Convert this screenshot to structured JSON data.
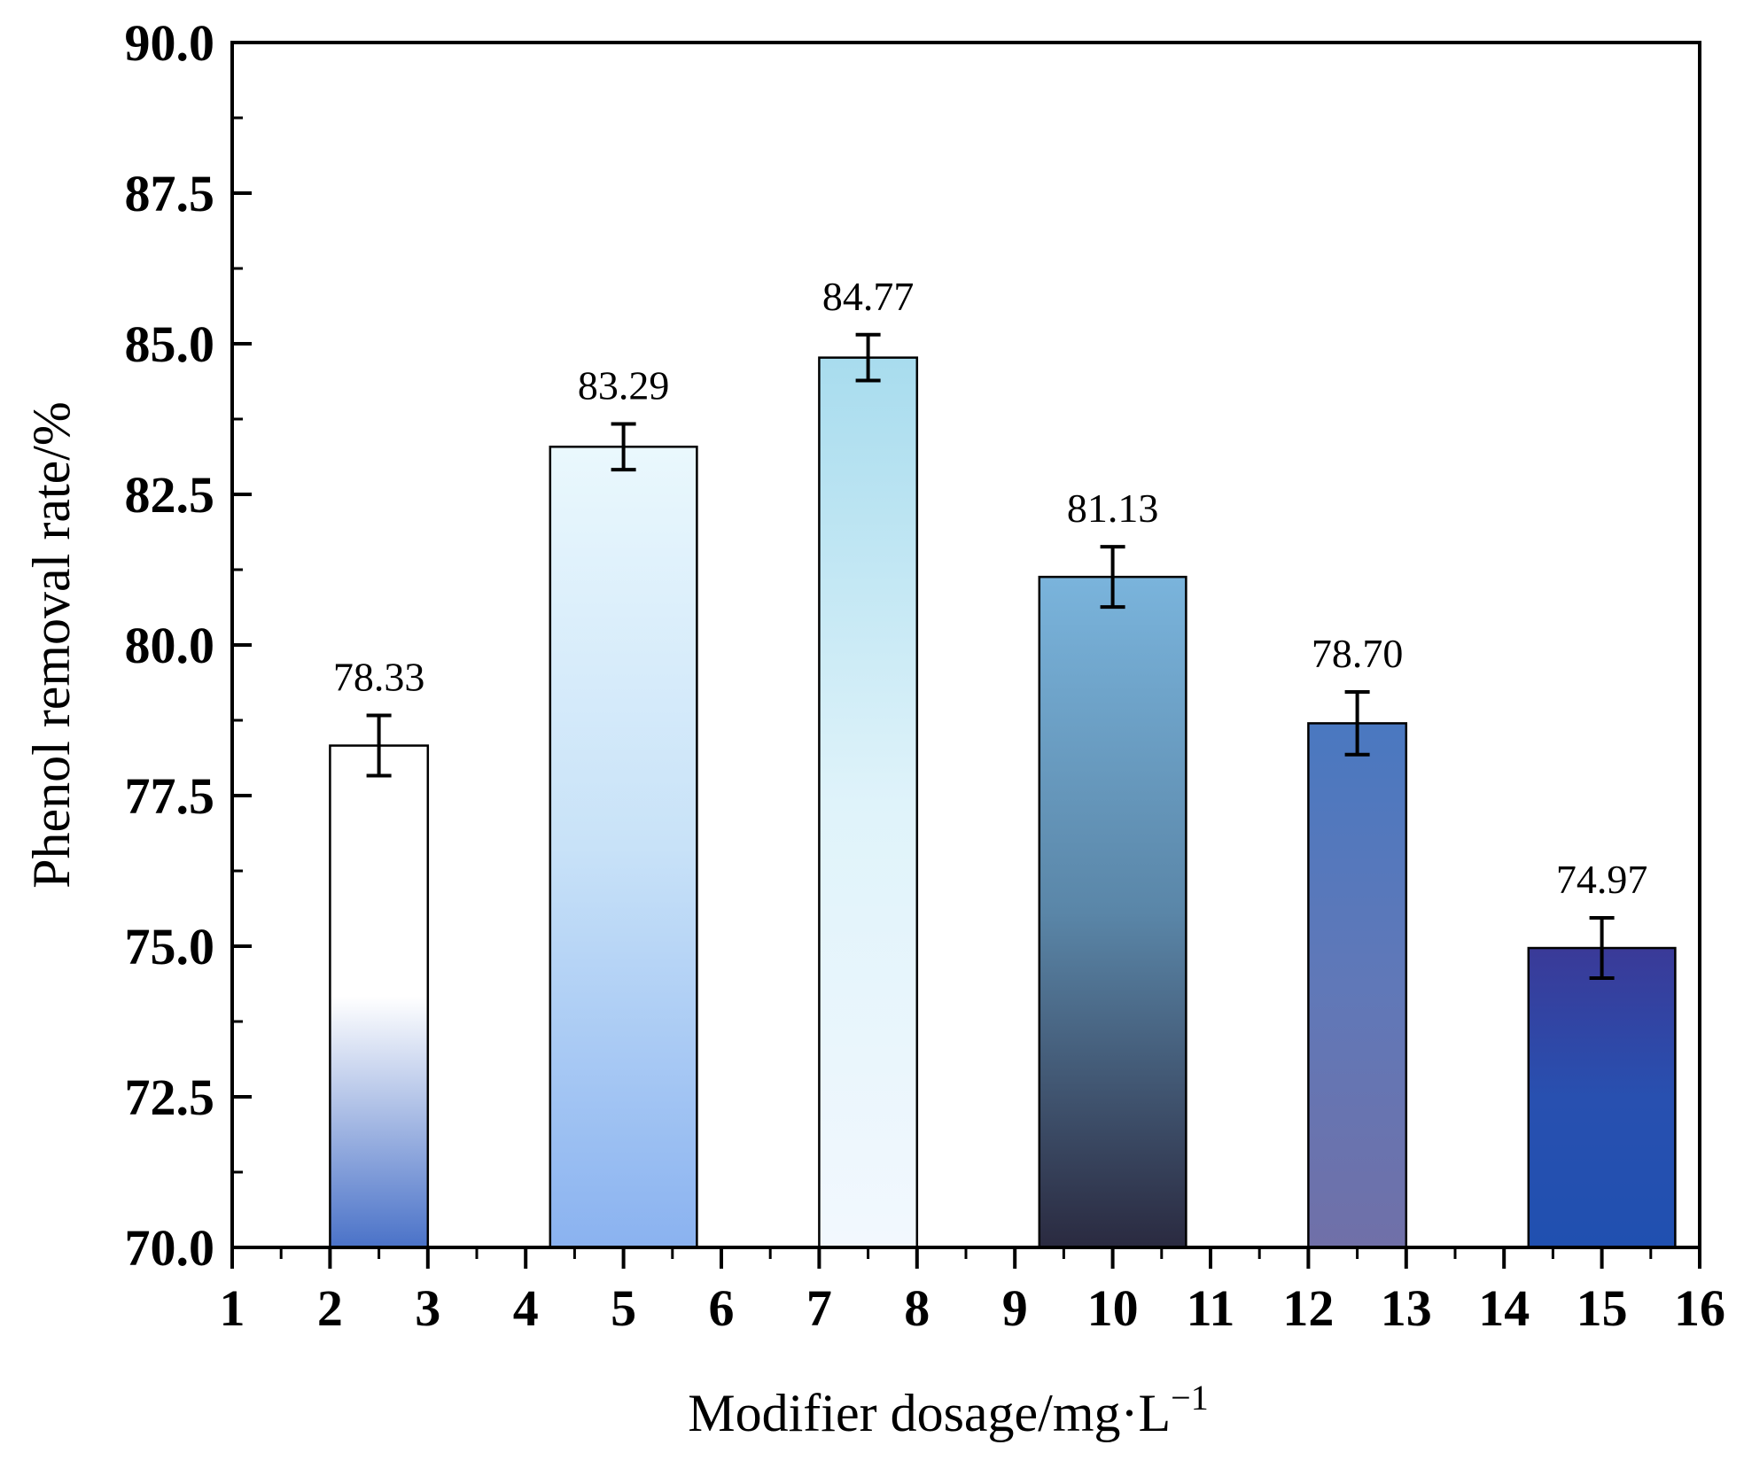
{
  "chart_data": {
    "type": "bar",
    "title": "",
    "xlabel": "Modifier dosage/mg·L",
    "xlabel_superscript": "−1",
    "ylabel": "Phenol removal rate/%",
    "ylim": [
      70.0,
      90.0
    ],
    "xlim": [
      1,
      16
    ],
    "yticks": [
      "70.0",
      "72.5",
      "75.0",
      "77.5",
      "80.0",
      "82.5",
      "85.0",
      "87.5",
      "90.0"
    ],
    "xticks": [
      "1",
      "2",
      "3",
      "4",
      "5",
      "6",
      "7",
      "8",
      "9",
      "10",
      "11",
      "12",
      "13",
      "14",
      "15",
      "16"
    ],
    "bars": [
      {
        "x": 2.5,
        "x_from": 2,
        "x_to": 3,
        "value": 78.33,
        "label": "78.33",
        "error": 0.5,
        "gradient": [
          "#ffffff",
          "#ffffff",
          "#4a72c8"
        ]
      },
      {
        "x": 5,
        "x_from": 4.25,
        "x_to": 5.75,
        "value": 83.29,
        "label": "83.29",
        "error": 0.38,
        "gradient": [
          "#eaf8fd",
          "#c8e2f8",
          "#8ab2f0"
        ]
      },
      {
        "x": 7.5,
        "x_from": 7,
        "x_to": 8,
        "value": 84.77,
        "label": "84.77",
        "error": 0.38,
        "gradient": [
          "#a8dcee",
          "#dff3fa",
          "#f2f8fe"
        ]
      },
      {
        "x": 10,
        "x_from": 9.25,
        "x_to": 10.75,
        "value": 81.13,
        "label": "81.13",
        "error": 0.5,
        "gradient": [
          "#7ab4dc",
          "#5a86a8",
          "#2a2a40"
        ]
      },
      {
        "x": 12.5,
        "x_from": 12,
        "x_to": 13,
        "value": 78.7,
        "label": "78.70",
        "error": 0.52,
        "gradient": [
          "#4a78c0",
          "#6078b8",
          "#7070a8"
        ]
      },
      {
        "x": 15,
        "x_from": 14.25,
        "x_to": 15.75,
        "value": 74.97,
        "label": "74.97",
        "error": 0.5,
        "gradient": [
          "#3a3a98",
          "#2850b0",
          "#2050b0"
        ]
      }
    ],
    "grid": false,
    "legend": "none"
  }
}
